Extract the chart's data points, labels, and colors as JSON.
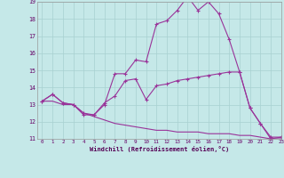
{
  "xlabel": "Windchill (Refroidissement éolien,°C)",
  "bg_color": "#c5e8e8",
  "grid_color": "#a8d0d0",
  "line_color": "#993399",
  "x": [
    0,
    1,
    2,
    3,
    4,
    5,
    6,
    7,
    8,
    9,
    10,
    11,
    12,
    13,
    14,
    15,
    16,
    17,
    18,
    19,
    20,
    21,
    22,
    23
  ],
  "line1": [
    13.2,
    13.6,
    13.1,
    13.0,
    12.5,
    12.4,
    13.0,
    14.8,
    14.8,
    15.6,
    15.5,
    17.7,
    17.9,
    18.5,
    19.3,
    18.5,
    19.0,
    18.3,
    16.8,
    14.9,
    12.8,
    11.9,
    11.0,
    11.1
  ],
  "line2": [
    13.2,
    13.6,
    13.1,
    13.0,
    12.4,
    12.4,
    13.1,
    13.5,
    14.4,
    14.5,
    13.3,
    14.1,
    14.2,
    14.4,
    14.5,
    14.6,
    14.7,
    14.8,
    14.9,
    14.9,
    12.8,
    11.9,
    11.1,
    11.1
  ],
  "line3": [
    13.2,
    13.2,
    13.0,
    13.0,
    12.5,
    12.3,
    12.1,
    11.9,
    11.8,
    11.7,
    11.6,
    11.5,
    11.5,
    11.4,
    11.4,
    11.4,
    11.3,
    11.3,
    11.3,
    11.2,
    11.2,
    11.1,
    11.0,
    11.0
  ],
  "ylim": [
    11,
    19
  ],
  "xlim": [
    -0.5,
    23
  ],
  "yticks": [
    11,
    12,
    13,
    14,
    15,
    16,
    17,
    18,
    19
  ],
  "xticks": [
    0,
    1,
    2,
    3,
    4,
    5,
    6,
    7,
    8,
    9,
    10,
    11,
    12,
    13,
    14,
    15,
    16,
    17,
    18,
    19,
    20,
    21,
    22,
    23
  ]
}
